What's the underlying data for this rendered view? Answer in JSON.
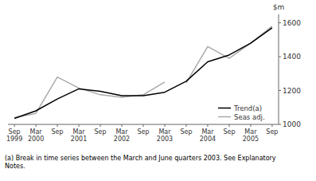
{
  "chart_data": {
    "type": "line",
    "y_label": "$m",
    "footnote": "(a) Break in time series between the March and June quarters 2003. See Explanatory\nNotes.",
    "categories": [
      "Sep\n1999",
      "Mar\n2000",
      "Sep",
      "Mar\n2001",
      "Sep",
      "Mar\n2002",
      "Sep",
      "Mar\n2003",
      "Sep",
      "Mar\n2004",
      "Sep",
      "Mar\n2005",
      "Sep"
    ],
    "series": [
      {
        "name": "Trend(a)",
        "color": "#000000",
        "values": [
          1035,
          1080,
          1150,
          1210,
          1195,
          1170,
          1170,
          1190,
          1255,
          1370,
          1410,
          1480,
          1570
        ]
      },
      {
        "name": "Seas adj.",
        "color": "#aaaaaa",
        "values": [
          1040,
          1065,
          1280,
          1215,
          1175,
          1160,
          1175,
          1250,
          null,
          null,
          null,
          null,
          null
        ]
      },
      {
        "color": "#aaaaaa",
        "values": [
          null,
          null,
          null,
          null,
          null,
          null,
          null,
          null,
          1245,
          1460,
          1390,
          1480,
          1580
        ]
      }
    ],
    "ylim": [
      1000,
      1650
    ],
    "yticks": [
      1000,
      1200,
      1400,
      1600
    ],
    "legend": "lower right",
    "grid": false
  }
}
